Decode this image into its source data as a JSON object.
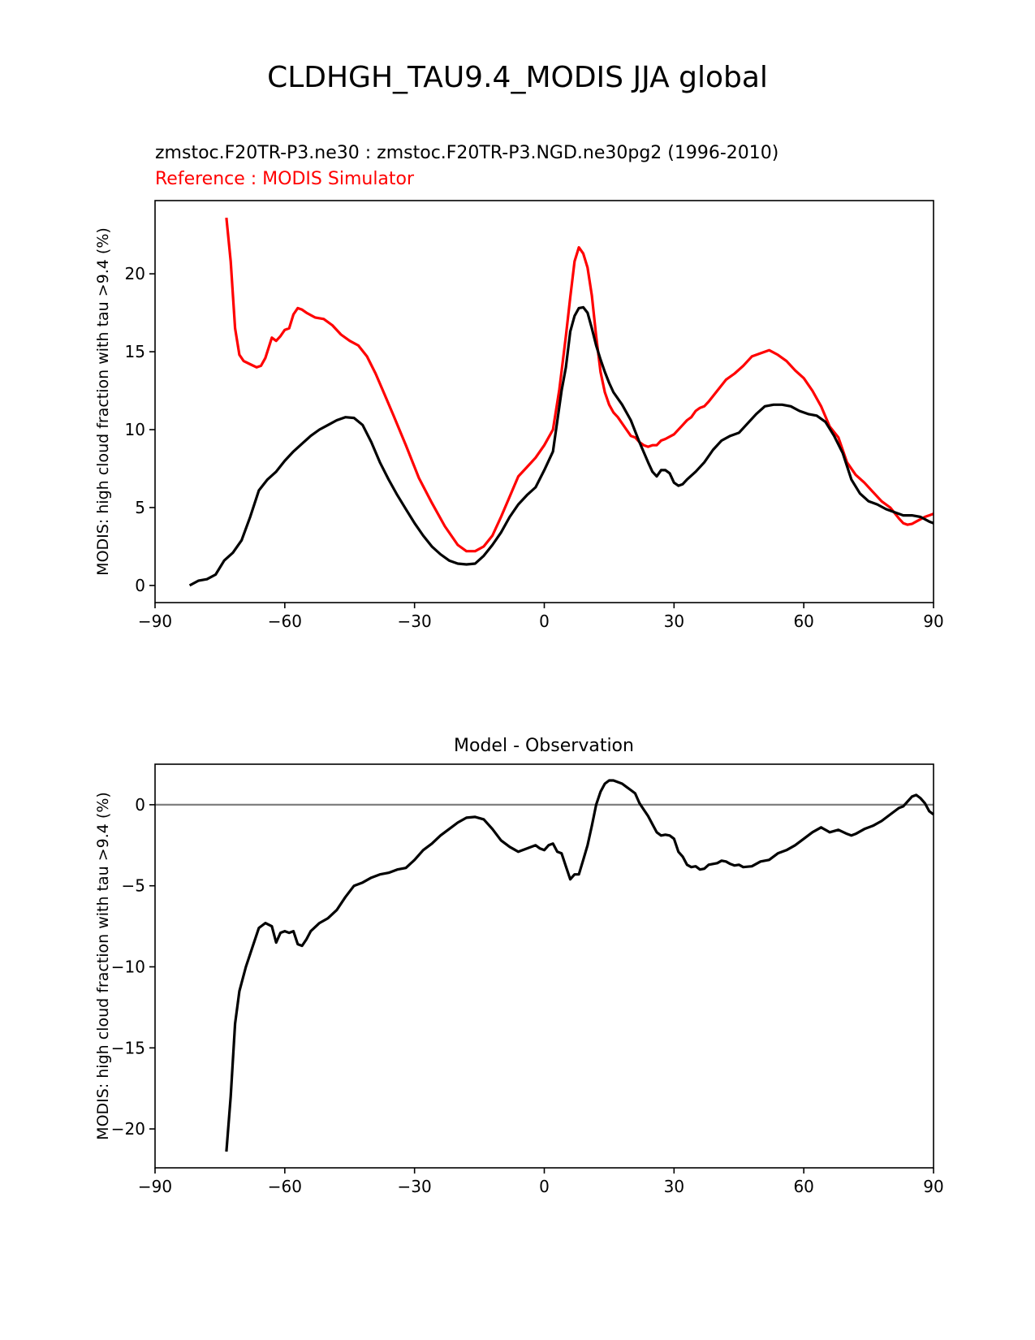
{
  "figure": {
    "title": "CLDHGH_TAU9.4_MODIS JJA global"
  },
  "chart_data": [
    {
      "type": "line",
      "subtitle": "zmstoc.F20TR-P3.ne30 : zmstoc.F20TR-P3.NGD.ne30pg2 (1996-2010)",
      "reference_label": "Reference : MODIS Simulator",
      "xlabel": "",
      "ylabel": "MODIS: high cloud fraction with tau >9.4 (%)",
      "xlim": [
        -90,
        90
      ],
      "ylim": [
        -1.1,
        24.7
      ],
      "xticks": [
        -90,
        -60,
        -30,
        0,
        30,
        60,
        90
      ],
      "xtick_labels": [
        "−90",
        "−60",
        "−30",
        "0",
        "30",
        "60",
        "90"
      ],
      "yticks": [
        0,
        5,
        10,
        15,
        20
      ],
      "ytick_labels": [
        "0",
        "5",
        "10",
        "15",
        "20"
      ],
      "grid": false,
      "series": [
        {
          "color": "#ff0000",
          "x": [
            -73.5,
            -72.5,
            -71.5,
            -70.5,
            -69.5,
            -68,
            -66.5,
            -65.5,
            -64.5,
            -63,
            -62,
            -61,
            -60,
            -59,
            -58,
            -57,
            -56,
            -55,
            -53,
            -51,
            -49,
            -47,
            -45,
            -43,
            -41,
            -39,
            -37,
            -35,
            -32,
            -29,
            -26,
            -23,
            -20,
            -18,
            -16,
            -14,
            -12,
            -10,
            -8,
            -6,
            -4,
            -2,
            0,
            2,
            3.5,
            5,
            6,
            7,
            8,
            9,
            10,
            11,
            12,
            13,
            14,
            15,
            16,
            17,
            18,
            19,
            20,
            21,
            22,
            23,
            24,
            25,
            26,
            27,
            28,
            30,
            32,
            33,
            34,
            35,
            36,
            37,
            38,
            40,
            42,
            44,
            46,
            48,
            50,
            52,
            54,
            56,
            58,
            60,
            62,
            64,
            66,
            68,
            70,
            72,
            74,
            76,
            78,
            80,
            82,
            83,
            84,
            85,
            86,
            88,
            89,
            90
          ],
          "y": [
            23.6,
            20.8,
            16.5,
            14.8,
            14.4,
            14.2,
            14.0,
            14.1,
            14.6,
            15.9,
            15.7,
            16.0,
            16.4,
            16.5,
            17.4,
            17.8,
            17.7,
            17.5,
            17.2,
            17.1,
            16.7,
            16.1,
            15.7,
            15.4,
            14.7,
            13.6,
            12.3,
            11.0,
            9.0,
            6.9,
            5.3,
            3.8,
            2.6,
            2.2,
            2.2,
            2.5,
            3.2,
            4.4,
            5.7,
            7.0,
            7.6,
            8.2,
            9.0,
            10.0,
            12.6,
            16.0,
            18.5,
            20.8,
            21.7,
            21.3,
            20.4,
            18.6,
            16.0,
            13.7,
            12.4,
            11.6,
            11.1,
            10.8,
            10.4,
            10.0,
            9.6,
            9.5,
            9.2,
            9.0,
            8.9,
            9.0,
            9.0,
            9.3,
            9.4,
            9.7,
            10.3,
            10.6,
            10.8,
            11.2,
            11.4,
            11.5,
            11.8,
            12.5,
            13.2,
            13.6,
            14.1,
            14.7,
            14.9,
            15.1,
            14.8,
            14.4,
            13.8,
            13.3,
            12.5,
            11.5,
            10.2,
            9.5,
            7.9,
            7.1,
            6.6,
            6.0,
            5.4,
            5.0,
            4.3,
            4.0,
            3.9,
            3.95,
            4.1,
            4.4,
            4.5,
            4.6
          ]
        },
        {
          "color": "#000000",
          "x": [
            -82,
            -80,
            -78,
            -76,
            -74,
            -72,
            -70,
            -68,
            -66,
            -64,
            -62,
            -60,
            -58,
            -56,
            -54,
            -52,
            -50,
            -48,
            -46,
            -44,
            -42,
            -40,
            -38,
            -36,
            -34,
            -32,
            -30,
            -28,
            -26,
            -24,
            -22,
            -20,
            -18,
            -16,
            -14,
            -12,
            -10,
            -8,
            -6,
            -4,
            -2,
            0,
            2,
            4,
            5,
            6,
            7,
            8,
            9,
            10,
            11,
            12,
            13,
            14,
            15,
            16,
            18,
            20,
            22,
            24,
            25,
            26,
            27,
            28,
            29,
            30,
            31,
            32,
            33,
            35,
            37,
            39,
            41,
            43,
            45,
            47,
            49,
            51,
            53,
            55,
            57,
            59,
            61,
            63,
            65,
            67,
            69,
            71,
            73,
            75,
            77,
            79,
            81,
            83,
            85,
            87,
            89,
            90
          ],
          "y": [
            0.0,
            0.3,
            0.4,
            0.7,
            1.6,
            2.1,
            2.9,
            4.4,
            6.1,
            6.8,
            7.3,
            8.0,
            8.6,
            9.1,
            9.6,
            10.0,
            10.3,
            10.6,
            10.8,
            10.75,
            10.3,
            9.2,
            7.9,
            6.8,
            5.8,
            4.9,
            4.0,
            3.2,
            2.5,
            2.0,
            1.6,
            1.4,
            1.35,
            1.4,
            1.9,
            2.6,
            3.4,
            4.4,
            5.2,
            5.8,
            6.3,
            7.4,
            8.6,
            12.5,
            14.0,
            16.3,
            17.3,
            17.8,
            17.85,
            17.5,
            16.5,
            15.4,
            14.5,
            13.7,
            13.0,
            12.4,
            11.6,
            10.6,
            9.2,
            7.9,
            7.3,
            7.0,
            7.4,
            7.4,
            7.2,
            6.6,
            6.4,
            6.5,
            6.8,
            7.3,
            7.9,
            8.7,
            9.3,
            9.6,
            9.8,
            10.4,
            11.0,
            11.5,
            11.6,
            11.6,
            11.5,
            11.2,
            11.0,
            10.9,
            10.5,
            9.6,
            8.5,
            6.8,
            5.9,
            5.4,
            5.2,
            4.9,
            4.7,
            4.5,
            4.5,
            4.4,
            4.1,
            4.0
          ]
        }
      ]
    },
    {
      "type": "line",
      "title": "Model - Observation",
      "xlabel": "",
      "ylabel": "MODIS: high cloud fraction with tau >9.4 (%)",
      "xlim": [
        -90,
        90
      ],
      "ylim": [
        -22.4,
        2.5
      ],
      "xticks": [
        -90,
        -60,
        -30,
        0,
        30,
        60,
        90
      ],
      "xtick_labels": [
        "−90",
        "−60",
        "−30",
        "0",
        "30",
        "60",
        "90"
      ],
      "yticks": [
        -20,
        -15,
        -10,
        -5,
        0
      ],
      "ytick_labels": [
        "−20",
        "−15",
        "−10",
        "−5",
        "0"
      ],
      "grid": false,
      "zero_line_color": "#808080",
      "series": [
        {
          "color": "#000000",
          "x": [
            -73.5,
            -72.5,
            -71.5,
            -70.5,
            -69,
            -67.5,
            -66,
            -64.5,
            -63,
            -62,
            -61,
            -60,
            -59,
            -58,
            -57,
            -56,
            -55,
            -54,
            -52,
            -50,
            -48,
            -46,
            -44,
            -42,
            -40,
            -38,
            -36,
            -34,
            -32,
            -30,
            -28,
            -26,
            -24,
            -22,
            -20,
            -18,
            -16,
            -14,
            -12,
            -10,
            -8,
            -6,
            -4,
            -2,
            -1,
            0,
            1,
            2,
            3,
            4,
            5,
            6,
            7,
            8,
            9,
            10,
            11,
            12,
            13,
            14,
            15,
            16,
            17,
            18,
            19,
            20,
            21,
            22,
            23,
            24,
            25,
            26,
            27,
            28,
            29,
            30,
            31,
            32,
            33,
            34,
            35,
            36,
            37,
            38,
            39,
            40,
            41,
            42,
            43,
            44,
            45,
            46,
            48,
            50,
            52,
            54,
            56,
            58,
            60,
            62,
            64,
            66,
            68,
            70,
            71,
            72,
            74,
            76,
            78,
            80,
            82,
            83,
            84,
            85,
            86,
            87,
            88,
            89,
            90
          ],
          "y": [
            -21.4,
            -18.0,
            -13.5,
            -11.5,
            -10.0,
            -8.8,
            -7.6,
            -7.3,
            -7.5,
            -8.5,
            -7.9,
            -7.8,
            -7.9,
            -7.8,
            -8.6,
            -8.7,
            -8.3,
            -7.8,
            -7.3,
            -7.0,
            -6.5,
            -5.7,
            -5.0,
            -4.8,
            -4.5,
            -4.3,
            -4.2,
            -4.0,
            -3.9,
            -3.4,
            -2.8,
            -2.4,
            -1.9,
            -1.5,
            -1.1,
            -0.8,
            -0.75,
            -0.9,
            -1.5,
            -2.2,
            -2.6,
            -2.9,
            -2.7,
            -2.5,
            -2.7,
            -2.8,
            -2.5,
            -2.4,
            -2.9,
            -3.0,
            -3.8,
            -4.6,
            -4.3,
            -4.3,
            -3.4,
            -2.5,
            -1.3,
            0.0,
            0.8,
            1.3,
            1.5,
            1.5,
            1.4,
            1.3,
            1.1,
            0.9,
            0.7,
            0.1,
            -0.3,
            -0.7,
            -1.2,
            -1.7,
            -1.9,
            -1.85,
            -1.9,
            -2.1,
            -2.9,
            -3.2,
            -3.7,
            -3.85,
            -3.8,
            -4.0,
            -3.95,
            -3.7,
            -3.65,
            -3.6,
            -3.45,
            -3.5,
            -3.65,
            -3.75,
            -3.7,
            -3.85,
            -3.8,
            -3.5,
            -3.4,
            -3.0,
            -2.8,
            -2.5,
            -2.1,
            -1.7,
            -1.4,
            -1.7,
            -1.55,
            -1.8,
            -1.9,
            -1.8,
            -1.5,
            -1.3,
            -1.0,
            -0.6,
            -0.2,
            -0.1,
            0.2,
            0.5,
            0.6,
            0.4,
            0.1,
            -0.4,
            -0.6
          ]
        }
      ]
    }
  ]
}
